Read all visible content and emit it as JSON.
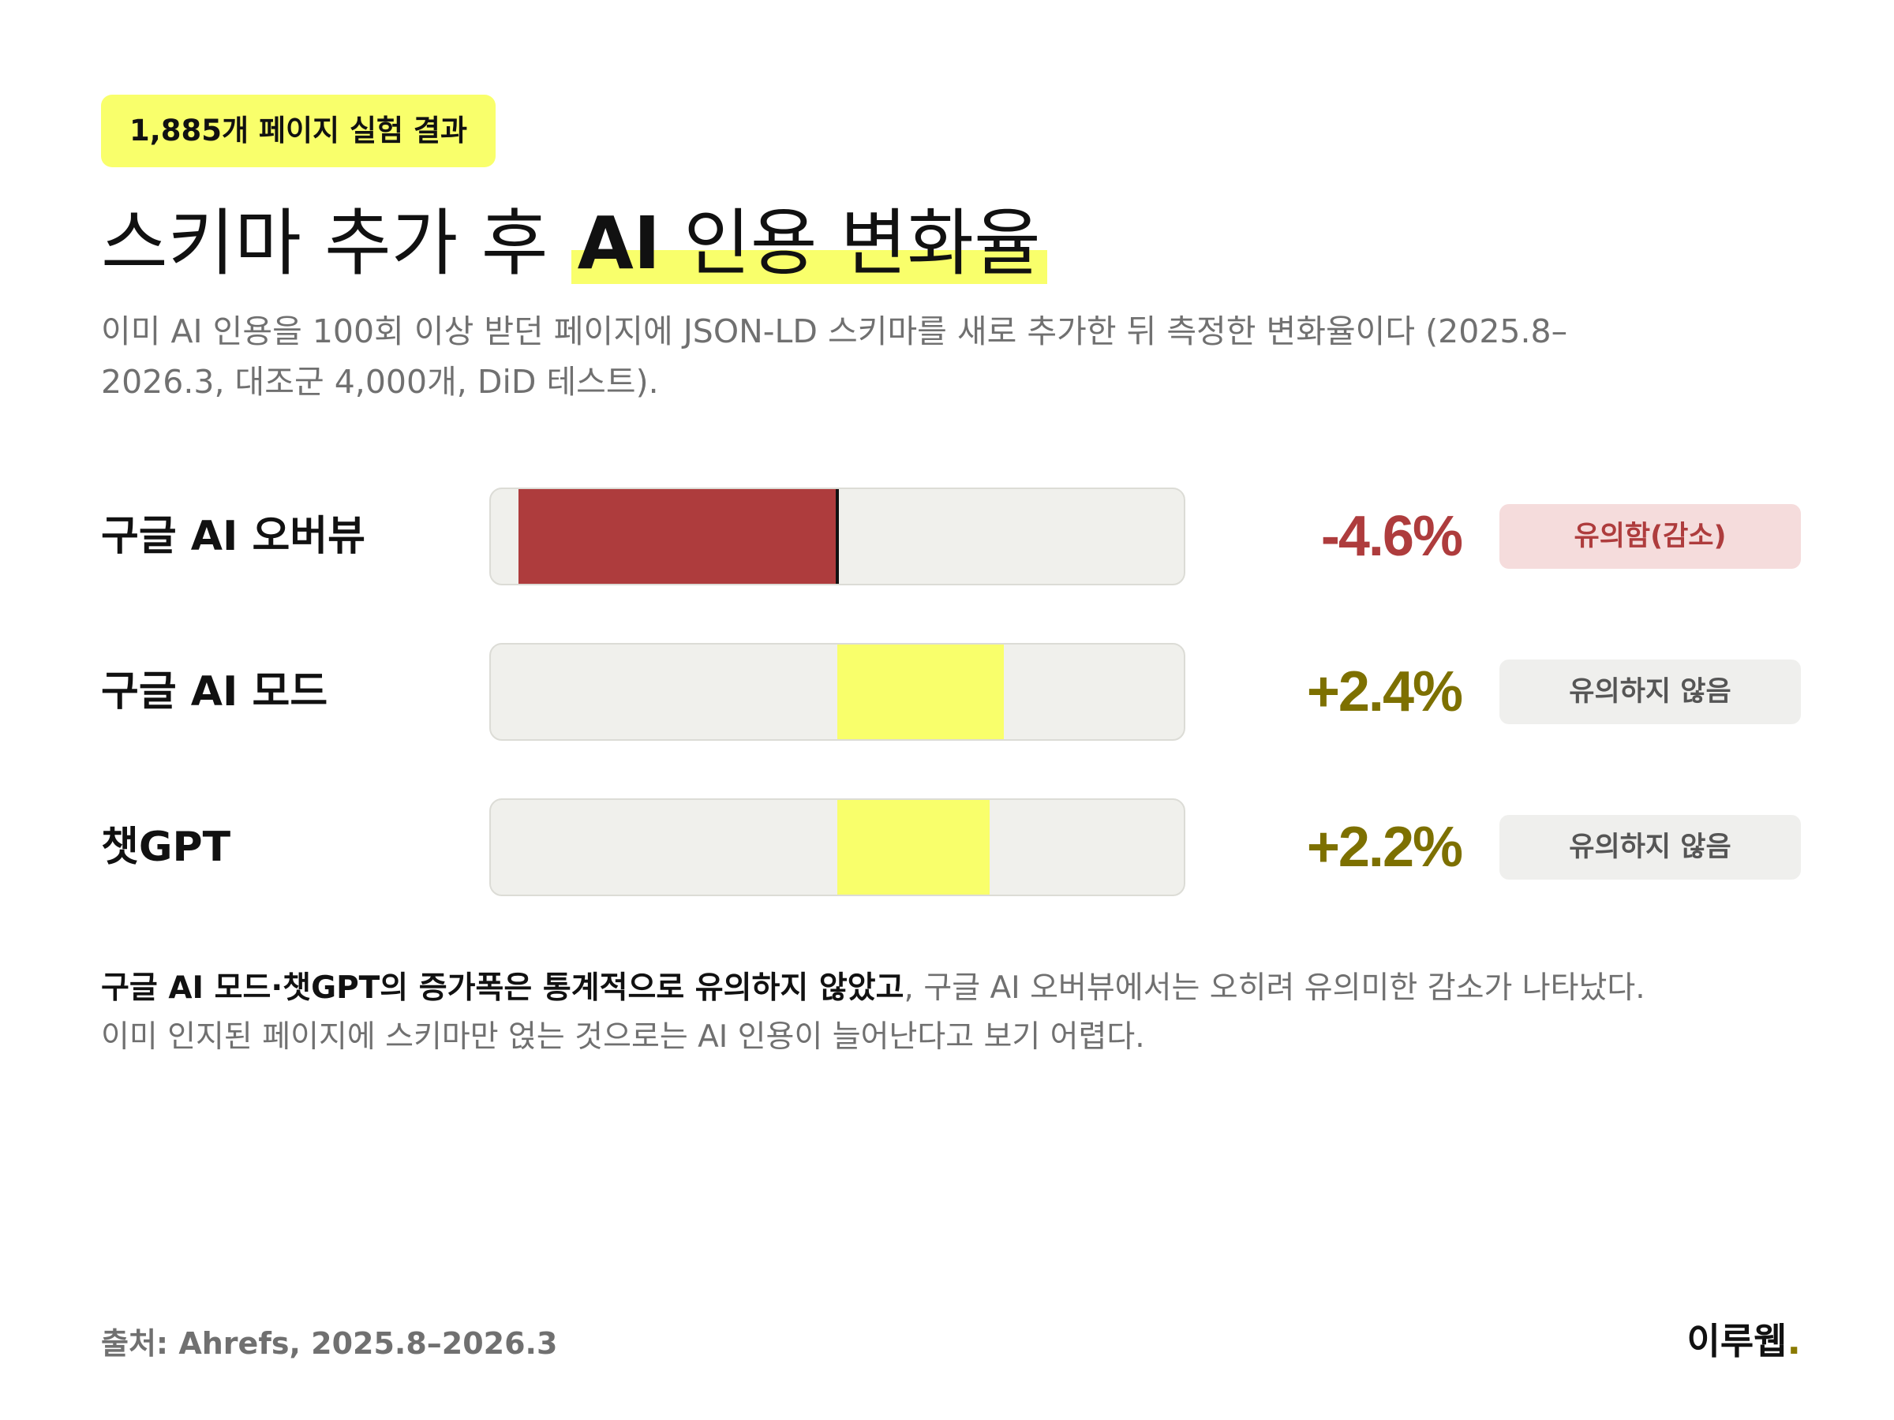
{
  "header": {
    "tag": "1,885개 페이지 실험 결과",
    "title_prefix": "스키마 추가 후 ",
    "title_highlight_ai": "AI",
    "title_highlight_rest": " 인용 변화율",
    "subtitle": "이미 AI 인용을 100회 이상 받던 페이지에 JSON-LD 스키마를 새로 추가한 뒤 측정한 변화율이다 (2025.8–2026.3, 대조군 4,000개, DiD 테스트)."
  },
  "chart_data": {
    "type": "bar",
    "orientation": "horizontal",
    "categories": [
      "구글 AI 오버뷰",
      "구글 AI 모드",
      "챗GPT"
    ],
    "values": [
      -4.6,
      2.4,
      2.2
    ],
    "value_labels": [
      "-4.6%",
      "+2.4%",
      "+2.2%"
    ],
    "unit": "%",
    "xlim": [
      -5,
      5
    ],
    "significance": [
      "유의함(감소)",
      "유의하지 않음",
      "유의하지 않음"
    ],
    "colors": {
      "negative_bar": "#ae3c3d",
      "positive_bar": "#f9ff6b",
      "negative_text": "#ae3c3d",
      "positive_text": "#7d7000",
      "significant_badge_bg": "#f5dcdc",
      "significant_badge_text": "#ae3c3d",
      "neutral_badge_bg": "#efefed",
      "neutral_badge_text": "#555555"
    },
    "grid": false,
    "legend": "none"
  },
  "note": {
    "bold": "구글 AI 모드·챗GPT의 증가폭은 통계적으로 유의하지 않았고",
    "rest": ", 구글 AI 오버뷰에서는 오히려 유의미한 감소가 나타났다. 이미 인지된 페이지에 스키마만 얹는 것으로는 AI 인용이 늘어난다고 보기 어렵다."
  },
  "footer": {
    "source": "출처: Ahrefs, 2025.8–2026.3",
    "logo_text": "이루웹",
    "logo_dot": "."
  }
}
